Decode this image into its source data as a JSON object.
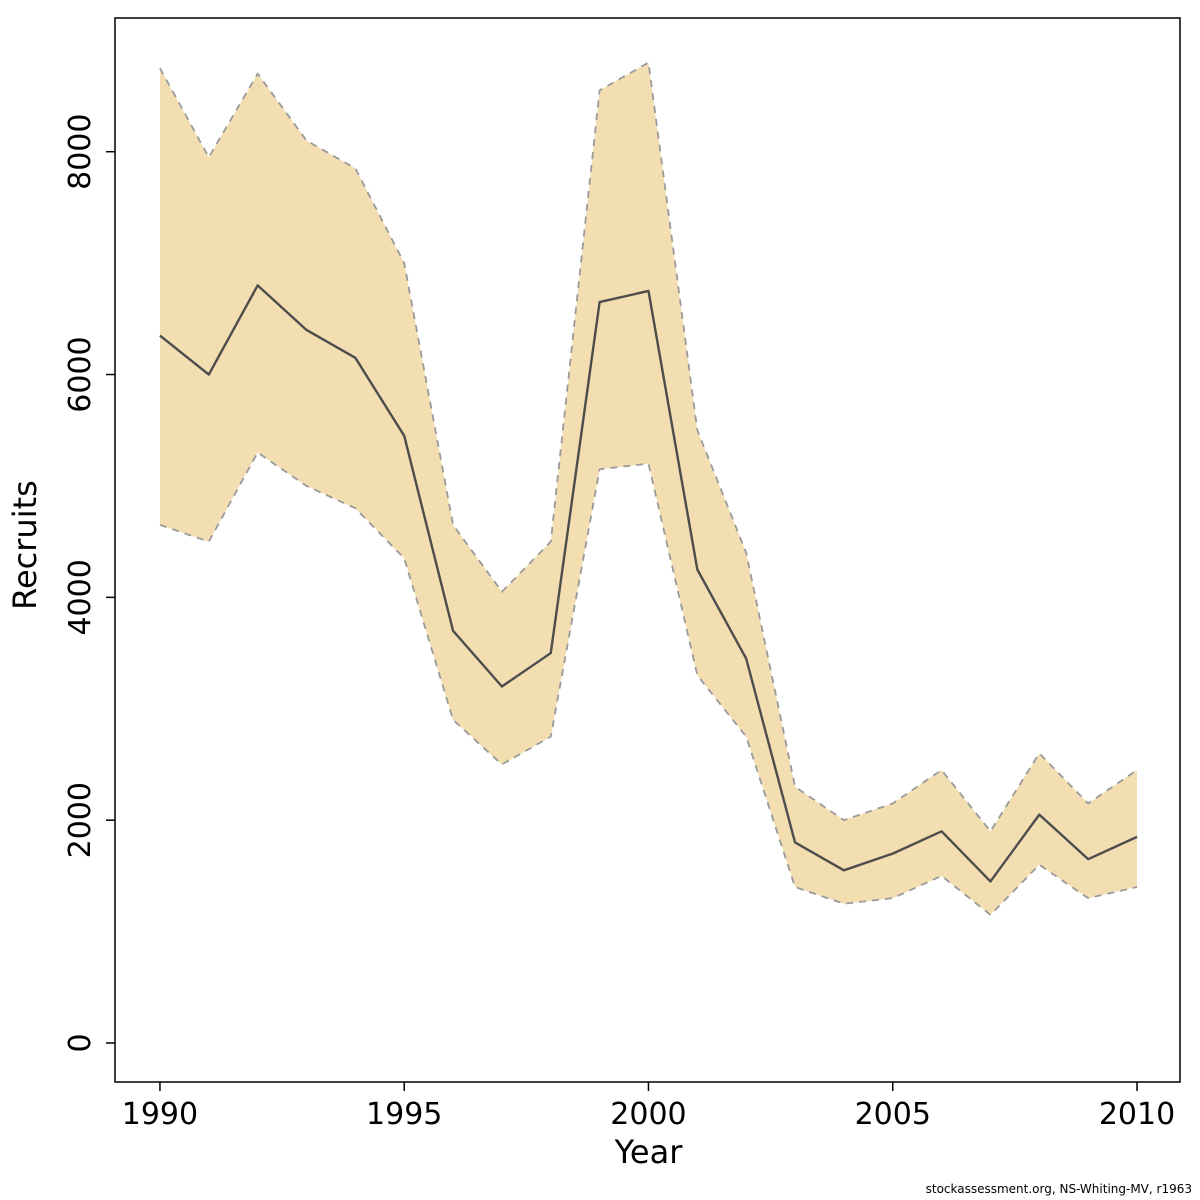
{
  "chart_data": {
    "type": "line",
    "title": "",
    "xlabel": "Year",
    "ylabel": "Recruits",
    "x": [
      1990,
      1991,
      1992,
      1993,
      1994,
      1995,
      1996,
      1997,
      1998,
      1999,
      2000,
      2001,
      2002,
      2003,
      2004,
      2005,
      2006,
      2007,
      2008,
      2009,
      2010
    ],
    "series": [
      {
        "name": "median_recruits",
        "values": [
          6350,
          6000,
          6800,
          6400,
          6150,
          5450,
          3700,
          3200,
          3500,
          6650,
          6750,
          4250,
          3450,
          1800,
          1550,
          1700,
          1900,
          1450,
          2050,
          1650,
          1850
        ]
      },
      {
        "name": "upper_confidence",
        "values": [
          8750,
          7950,
          8700,
          8100,
          7850,
          7000,
          4650,
          4050,
          4500,
          8550,
          8800,
          5500,
          4400,
          2300,
          2000,
          2150,
          2450,
          1900,
          2600,
          2150,
          2450
        ]
      },
      {
        "name": "lower_confidence",
        "values": [
          4650,
          4500,
          5300,
          5000,
          4800,
          4350,
          2900,
          2500,
          2750,
          5150,
          5200,
          3300,
          2750,
          1400,
          1250,
          1300,
          1500,
          1150,
          1600,
          1300,
          1400
        ]
      }
    ],
    "xticks": [
      1990,
      1995,
      2000,
      2005,
      2010
    ],
    "yticks": [
      0,
      2000,
      4000,
      6000,
      8000
    ],
    "xlim": [
      1989.08,
      2010.88
    ],
    "ylim": [
      -350,
      9200
    ],
    "grid": false,
    "legend": "none",
    "band_fill": "#f3deb2",
    "band_edge": "#9a9a9a",
    "line_color": "#4d4d4d",
    "axis_color": "#000000"
  },
  "footer": {
    "text": "stockassessment.org, NS-Whiting-MV, r1963"
  }
}
